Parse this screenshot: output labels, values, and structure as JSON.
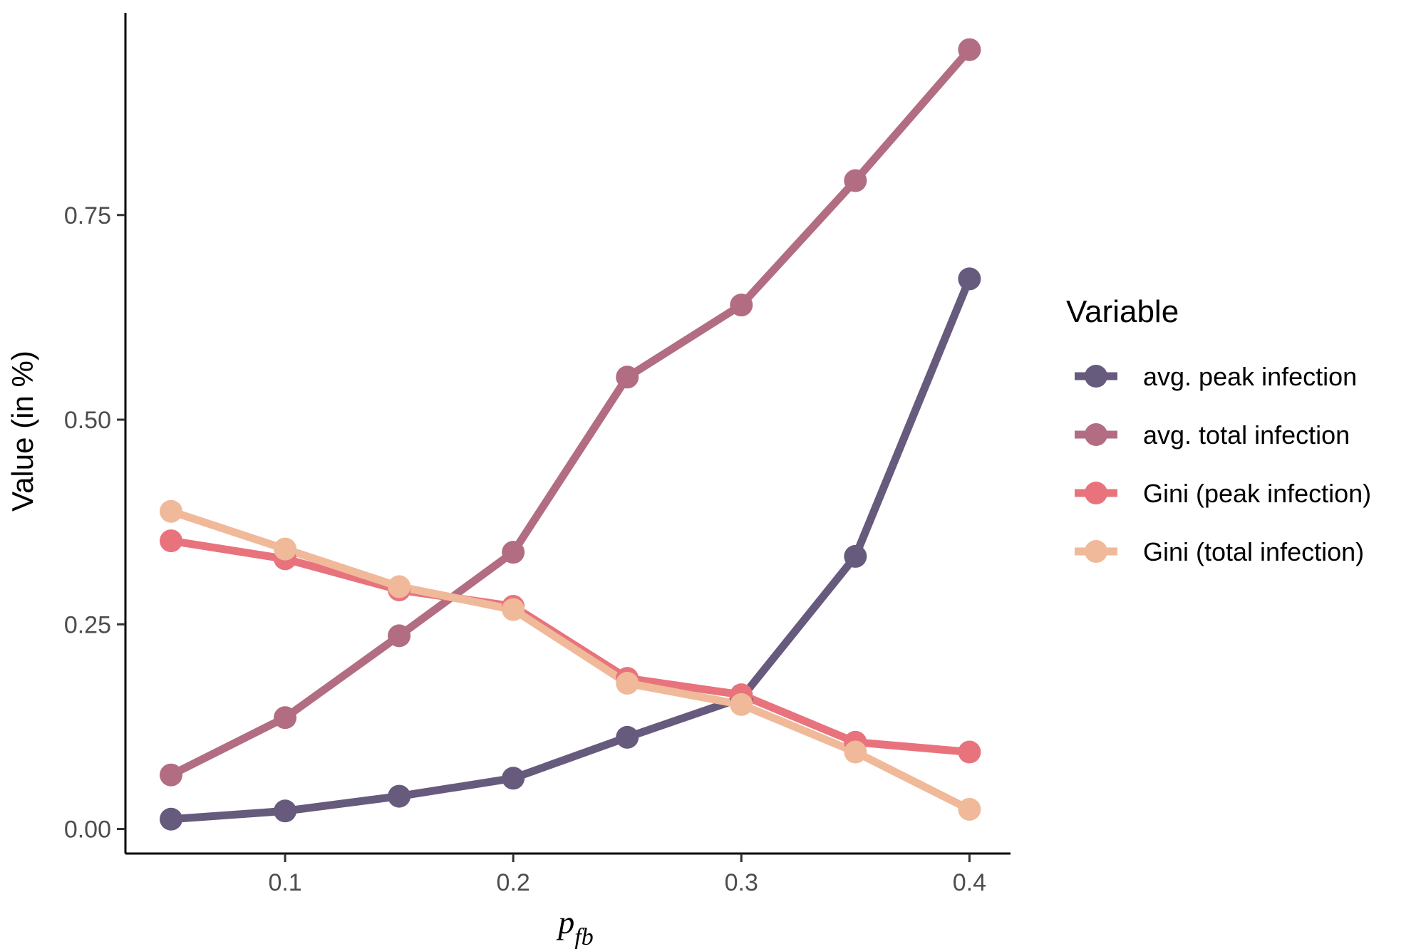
{
  "chart_data": {
    "type": "line",
    "title": "",
    "xlabel": "p",
    "xlabel_subscript": "fb",
    "ylabel": "Value (in %)",
    "x": [
      0.05,
      0.1,
      0.15,
      0.2,
      0.25,
      0.3,
      0.35,
      0.4
    ],
    "xlim": [
      0.03,
      0.418
    ],
    "ylim": [
      -0.03,
      0.997
    ],
    "x_ticks": [
      0.1,
      0.2,
      0.3,
      0.4
    ],
    "x_tick_labels": [
      "0.1",
      "0.2",
      "0.3",
      "0.4"
    ],
    "y_ticks": [
      0.0,
      0.25,
      0.5,
      0.75
    ],
    "y_tick_labels": [
      "0.00",
      "0.25",
      "0.50",
      "0.75"
    ],
    "grid": false,
    "legend": {
      "title": "Variable",
      "position": "right"
    },
    "series": [
      {
        "name": "avg. peak infection",
        "color": "#665a7d",
        "values": [
          0.012,
          0.022,
          0.04,
          0.062,
          0.112,
          0.16,
          0.333,
          0.672
        ]
      },
      {
        "name": "avg. total infection",
        "color": "#b26d82",
        "values": [
          0.066,
          0.136,
          0.236,
          0.338,
          0.552,
          0.64,
          0.792,
          0.952
        ]
      },
      {
        "name": "Gini (peak infection)",
        "color": "#e8737c",
        "values": [
          0.352,
          0.33,
          0.292,
          0.272,
          0.184,
          0.164,
          0.106,
          0.094
        ]
      },
      {
        "name": "Gini (total infection)",
        "color": "#f0b99a",
        "values": [
          0.388,
          0.342,
          0.296,
          0.268,
          0.178,
          0.152,
          0.094,
          0.024
        ]
      }
    ]
  }
}
